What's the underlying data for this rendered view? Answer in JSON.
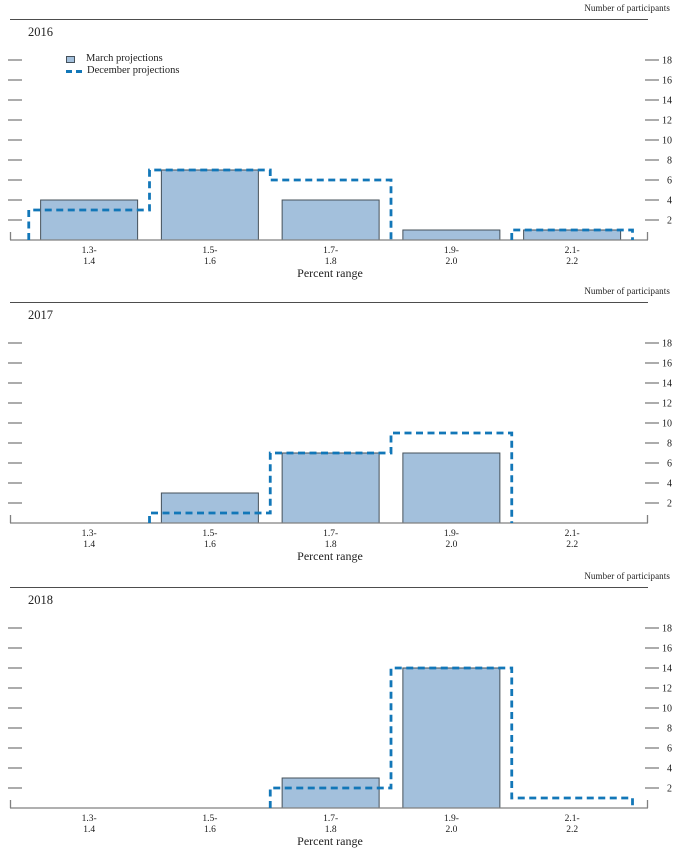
{
  "labels": {
    "right_axis": "Number of participants",
    "xlabel": "Percent range"
  },
  "legend": {
    "march_label": "March projections",
    "december_label": "December projections",
    "position": "upper-left"
  },
  "colors": {
    "bar_fill": "#a3c0dc",
    "bar_border": "#45505a",
    "dashed_line": "#1277b8",
    "axis": "#808080",
    "tick": "#888888",
    "rule": "#4d4d4d",
    "text": "#1a1a1a"
  },
  "chart_data": [
    {
      "type": "bar",
      "title": "2016",
      "xlabel": "Percent range",
      "ylabel_right": "Number of participants",
      "categories": [
        "1.3-1.4",
        "1.5-1.6",
        "1.7-1.8",
        "1.9-2.0",
        "2.1-2.2"
      ],
      "y_ticks": [
        2,
        4,
        6,
        8,
        10,
        12,
        14,
        16,
        18
      ],
      "ylim": [
        0,
        19
      ],
      "grid": false,
      "series": [
        {
          "name": "March projections",
          "style": "bar",
          "values": [
            4,
            7,
            4,
            1,
            1
          ]
        },
        {
          "name": "December projections",
          "style": "dashed-step",
          "values": [
            3,
            7,
            6,
            0,
            1
          ]
        }
      ]
    },
    {
      "type": "bar",
      "title": "2017",
      "xlabel": "Percent range",
      "ylabel_right": "Number of participants",
      "categories": [
        "1.3-1.4",
        "1.5-1.6",
        "1.7-1.8",
        "1.9-2.0",
        "2.1-2.2"
      ],
      "y_ticks": [
        2,
        4,
        6,
        8,
        10,
        12,
        14,
        16,
        18
      ],
      "ylim": [
        0,
        19
      ],
      "grid": false,
      "series": [
        {
          "name": "March projections",
          "style": "bar",
          "values": [
            0,
            3,
            7,
            7,
            0
          ]
        },
        {
          "name": "December projections",
          "style": "dashed-step",
          "values": [
            0,
            1,
            7,
            9,
            0
          ]
        }
      ]
    },
    {
      "type": "bar",
      "title": "2018",
      "xlabel": "Percent range",
      "ylabel_right": "Number of participants",
      "categories": [
        "1.3-1.4",
        "1.5-1.6",
        "1.7-1.8",
        "1.9-2.0",
        "2.1-2.2"
      ],
      "y_ticks": [
        2,
        4,
        6,
        8,
        10,
        12,
        14,
        16,
        18
      ],
      "ylim": [
        0,
        19
      ],
      "grid": false,
      "series": [
        {
          "name": "March projections",
          "style": "bar",
          "values": [
            0,
            0,
            3,
            14,
            0
          ]
        },
        {
          "name": "December projections",
          "style": "dashed-step",
          "values": [
            0,
            0,
            2,
            14,
            1
          ]
        }
      ]
    }
  ]
}
